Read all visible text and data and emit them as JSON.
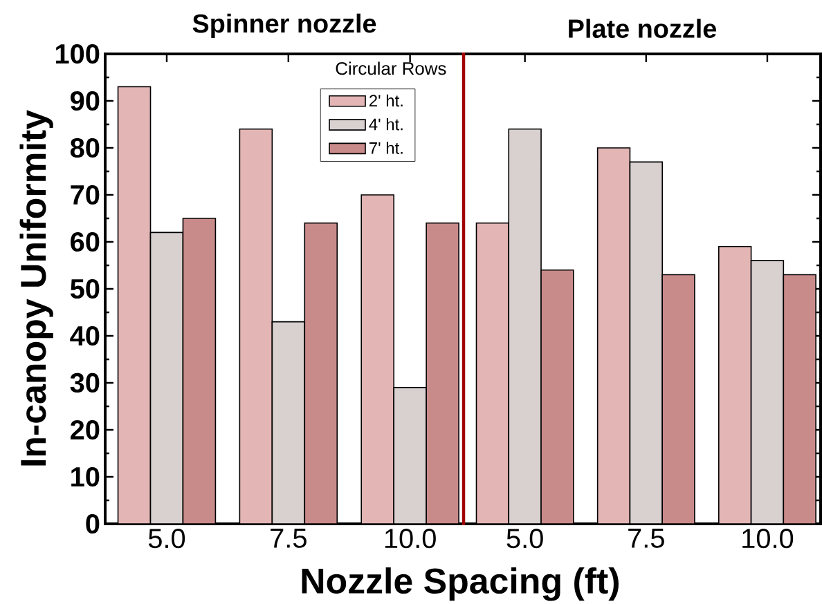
{
  "chart_data": [
    {
      "type": "bar",
      "title": "Spinner nozzle",
      "xlabel": "Nozzle Spacing (ft)",
      "ylabel": "In-canopy Uniformity",
      "legend_title": "Circular Rows",
      "legend": "top right",
      "categories": [
        "5.0",
        "7.5",
        "10.0"
      ],
      "series": [
        {
          "name": "2' ht.",
          "color": "#e3b5b5",
          "values": [
            93,
            84,
            70
          ]
        },
        {
          "name": "4' ht.",
          "color": "#d9d0d0",
          "values": [
            62,
            43,
            29
          ]
        },
        {
          "name": "7' ht.",
          "color": "#c98a8a",
          "values": [
            65,
            64,
            64
          ]
        }
      ],
      "ylim": [
        0,
        100
      ],
      "yticks": [
        0,
        10,
        20,
        30,
        40,
        50,
        60,
        70,
        80,
        90,
        100
      ]
    },
    {
      "type": "bar",
      "title": "Plate nozzle",
      "tick_labels": "x",
      "categories": [
        "5.0",
        "7.5",
        "10.0"
      ],
      "series": [
        {
          "color": "#e3b5b5",
          "values": [
            64,
            80,
            59
          ]
        },
        {
          "color": "#d9d0d0",
          "values": [
            84,
            77,
            56
          ]
        },
        {
          "color": "#c98a8a",
          "values": [
            54,
            53,
            53
          ]
        }
      ],
      "ylim": [
        0,
        100
      ],
      "yticks": [
        0,
        10,
        20,
        30,
        40,
        50,
        60,
        70,
        80,
        90,
        100
      ]
    }
  ]
}
